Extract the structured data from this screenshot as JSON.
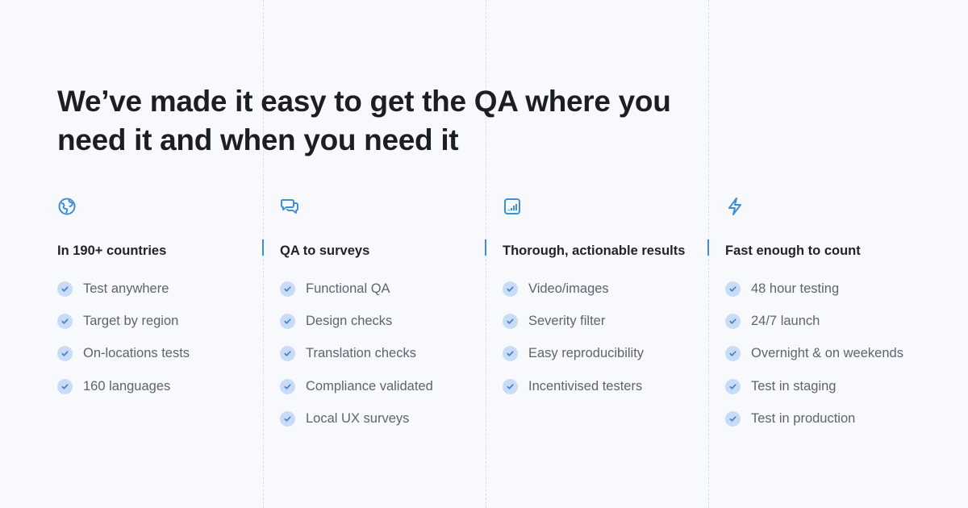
{
  "title": "We’ve made it easy to get the QA where you need it and when you need it",
  "colors": {
    "accent": "#3d8fd6",
    "check_bg": "#c8dcf7",
    "background": "#f7f9fc"
  },
  "columns": [
    {
      "icon": "globe-icon",
      "heading": "In 190+ countries",
      "items": [
        "Test anywhere",
        "Target by region",
        "On-locations tests",
        "160 languages"
      ]
    },
    {
      "icon": "chat-bubbles-icon",
      "heading": "QA to surveys",
      "items": [
        "Functional QA",
        "Design checks",
        "Translation checks",
        "Compliance validated",
        "Local UX surveys"
      ]
    },
    {
      "icon": "bar-chart-icon",
      "heading": "Thorough, actionable results",
      "items": [
        "Video/images",
        "Severity filter",
        "Easy reproducibility",
        "Incentivised testers"
      ]
    },
    {
      "icon": "lightning-icon",
      "heading": "Fast enough to count",
      "items": [
        "48 hour testing",
        "24/7 launch",
        "Overnight & on weekends",
        "Test in staging",
        "Test in production"
      ]
    }
  ]
}
